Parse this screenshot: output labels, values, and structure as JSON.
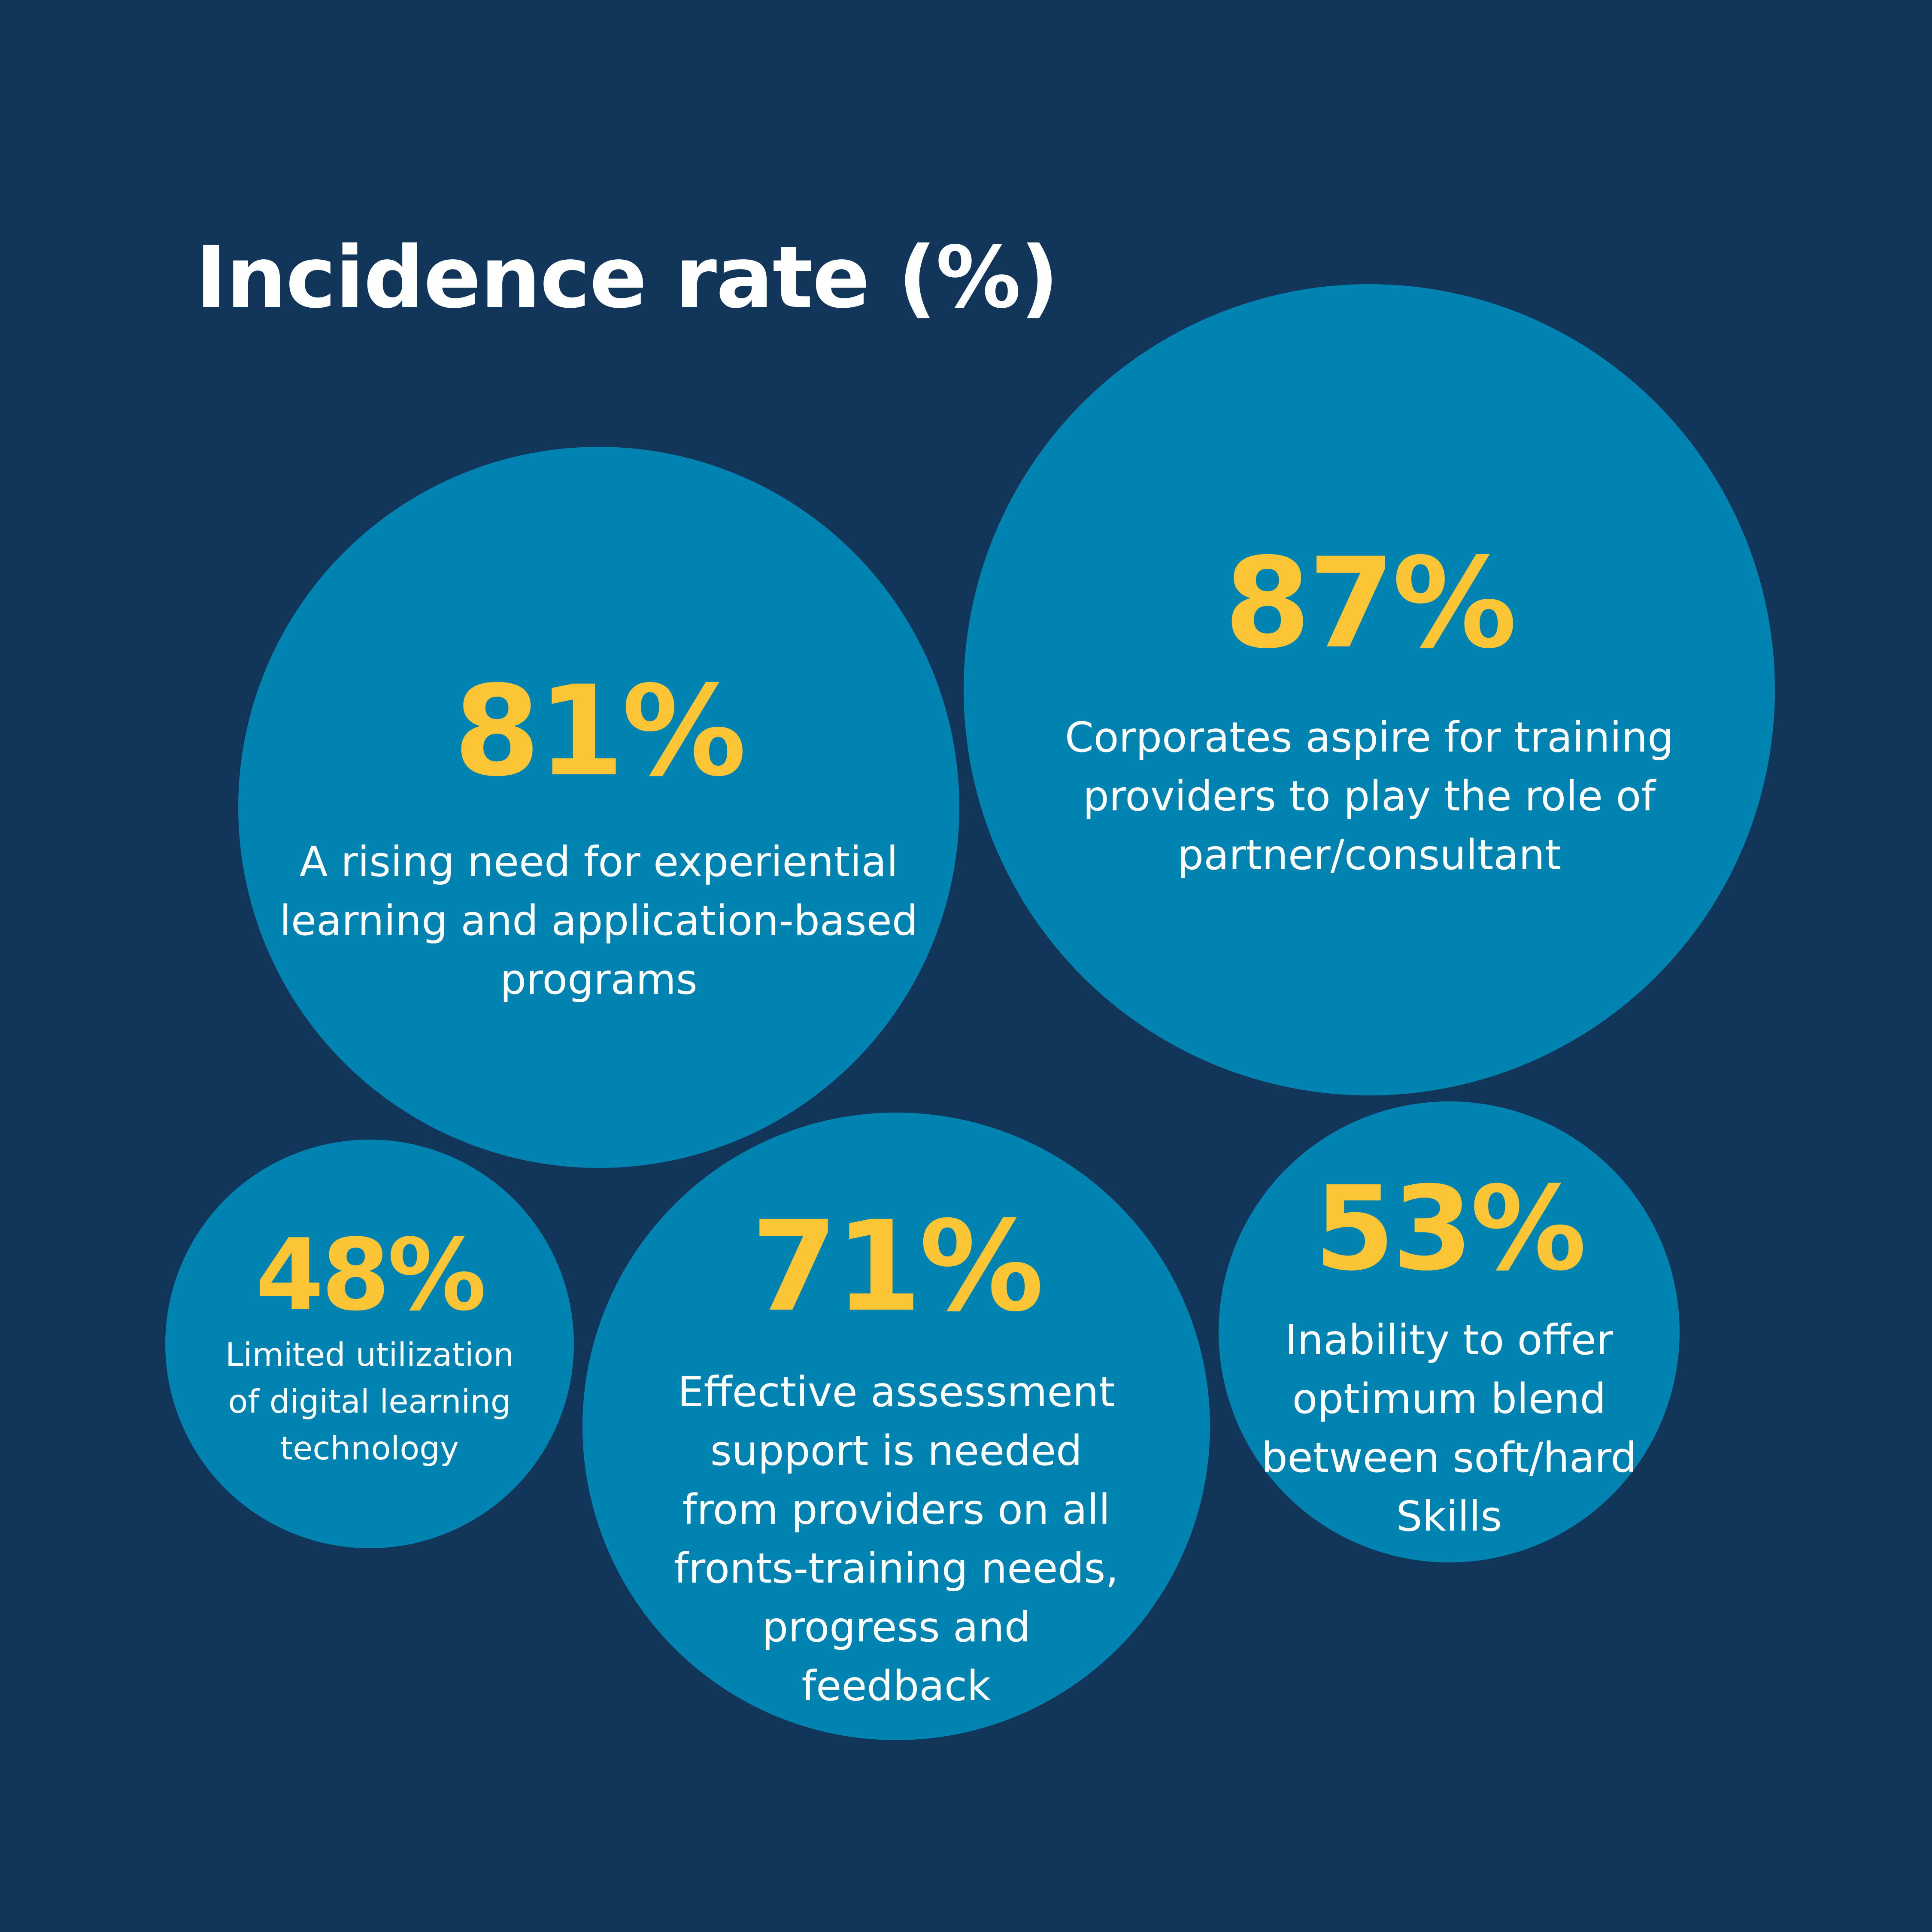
{
  "colors": {
    "background": "#12365a",
    "bubble": "#0083b0",
    "value_text": "#fbc536",
    "label_text": "#ffffff"
  },
  "chart_data": {
    "type": "bubble",
    "title": "Incidence rate (%)",
    "unit": "%",
    "bubbles": [
      {
        "value": 81,
        "value_label": "81%",
        "label_lines": [
          "A rising need for experiential",
          "learning and application-based",
          "programs"
        ]
      },
      {
        "value": 87,
        "value_label": "87%",
        "label_lines": [
          "Corporates aspire for training",
          "providers to play the role of",
          "partner/consultant"
        ]
      },
      {
        "value": 48,
        "value_label": "48%",
        "label_lines": [
          "Limited utilization",
          "of digital learning",
          "technology"
        ]
      },
      {
        "value": 71,
        "value_label": "71%",
        "label_lines": [
          "Effective assessment",
          "support is needed",
          "from providers on all",
          "fronts-training needs,",
          "progress and",
          "feedback"
        ]
      },
      {
        "value": 53,
        "value_label": "53%",
        "label_lines": [
          "Inability to offer",
          "optimum blend",
          "between soft/hard",
          "Skills"
        ]
      }
    ]
  }
}
